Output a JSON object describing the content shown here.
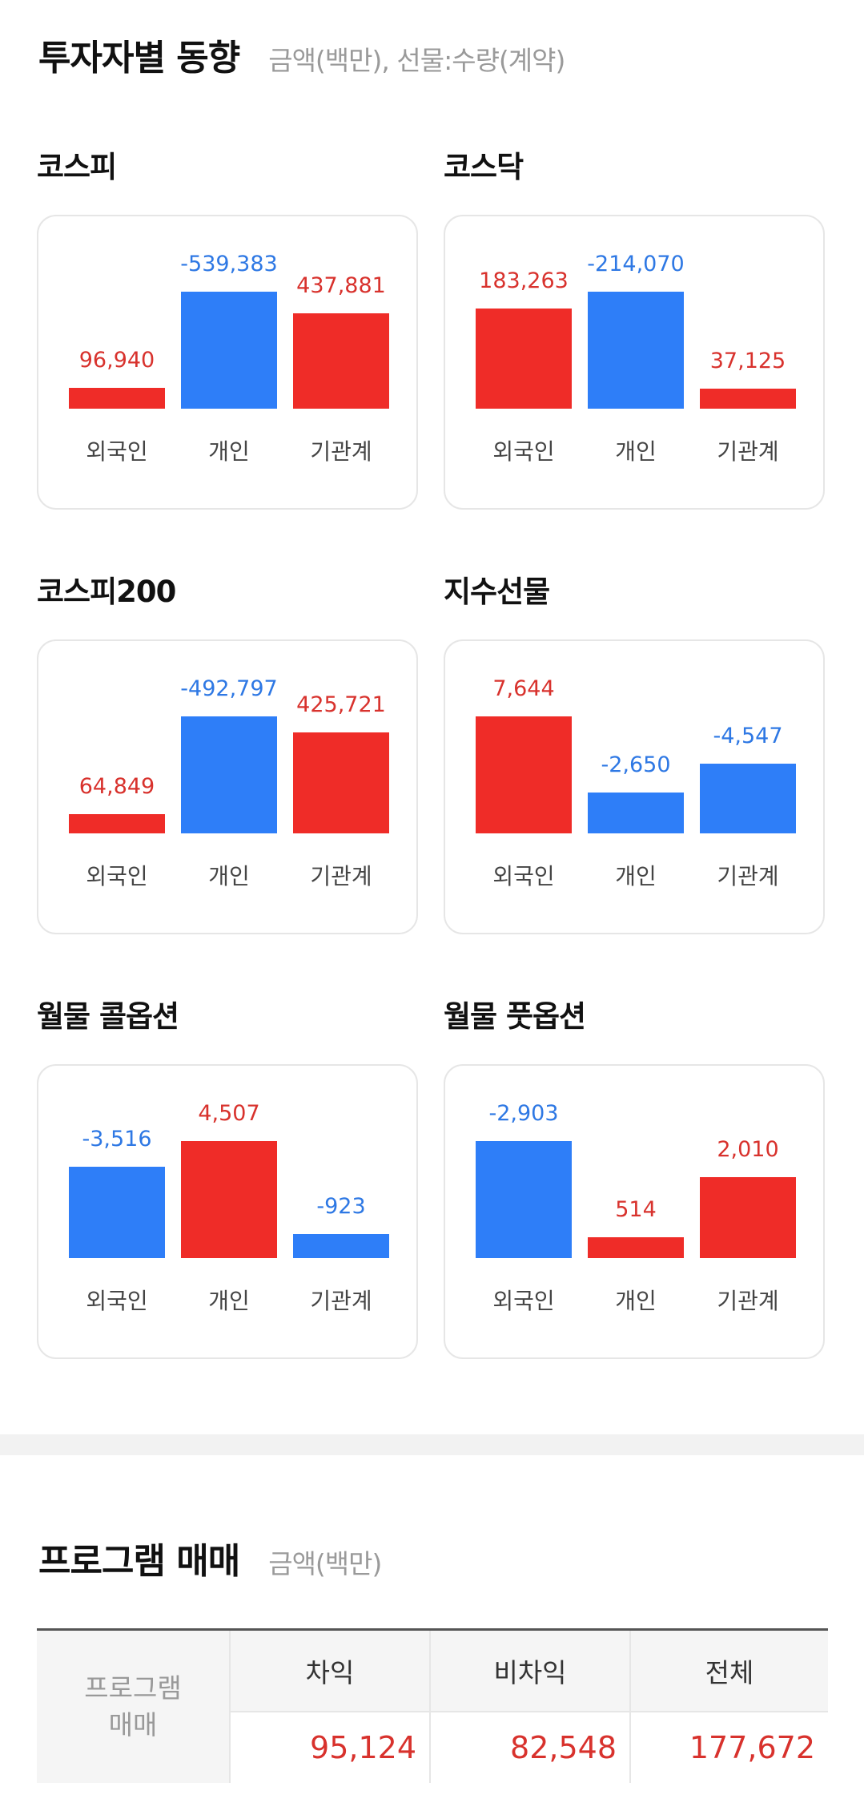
{
  "investor_section": {
    "title": "투자자별 동향",
    "note": "금액(백만), 선물:수량(계약)"
  },
  "charts": [
    {
      "title": "코스피",
      "labels": [
        "외국인",
        "개인",
        "기관계"
      ],
      "values": [
        "96,940",
        "-539,383",
        "437,881"
      ],
      "numbers": [
        96940,
        -539383,
        437881
      ]
    },
    {
      "title": "코스닥",
      "labels": [
        "외국인",
        "개인",
        "기관계"
      ],
      "values": [
        "183,263",
        "-214,070",
        "37,125"
      ],
      "numbers": [
        183263,
        -214070,
        37125
      ]
    },
    {
      "title": "코스피200",
      "labels": [
        "외국인",
        "개인",
        "기관계"
      ],
      "values": [
        "64,849",
        "-492,797",
        "425,721"
      ],
      "numbers": [
        64849,
        -492797,
        425721
      ]
    },
    {
      "title": "지수선물",
      "labels": [
        "외국인",
        "개인",
        "기관계"
      ],
      "values": [
        "7,644",
        "-2,650",
        "-4,547"
      ],
      "numbers": [
        7644,
        -2650,
        -4547
      ]
    },
    {
      "title": "월물 콜옵션",
      "labels": [
        "외국인",
        "개인",
        "기관계"
      ],
      "values": [
        "-3,516",
        "4,507",
        "-923"
      ],
      "numbers": [
        -3516,
        4507,
        -923
      ]
    },
    {
      "title": "월물 풋옵션",
      "labels": [
        "외국인",
        "개인",
        "기관계"
      ],
      "values": [
        "-2,903",
        "514",
        "2,010"
      ],
      "numbers": [
        -2903,
        514,
        2010
      ]
    }
  ],
  "colors": {
    "positive": "#ef2c28",
    "negative": "#2e7ef8"
  },
  "program_section": {
    "title": "프로그램 매매",
    "note": "금액(백만)",
    "row_label_line1": "프로그램",
    "row_label_line2": "매매",
    "columns": [
      "차익",
      "비차익",
      "전체"
    ],
    "values": [
      "95,124",
      "82,548",
      "177,672"
    ]
  }
}
